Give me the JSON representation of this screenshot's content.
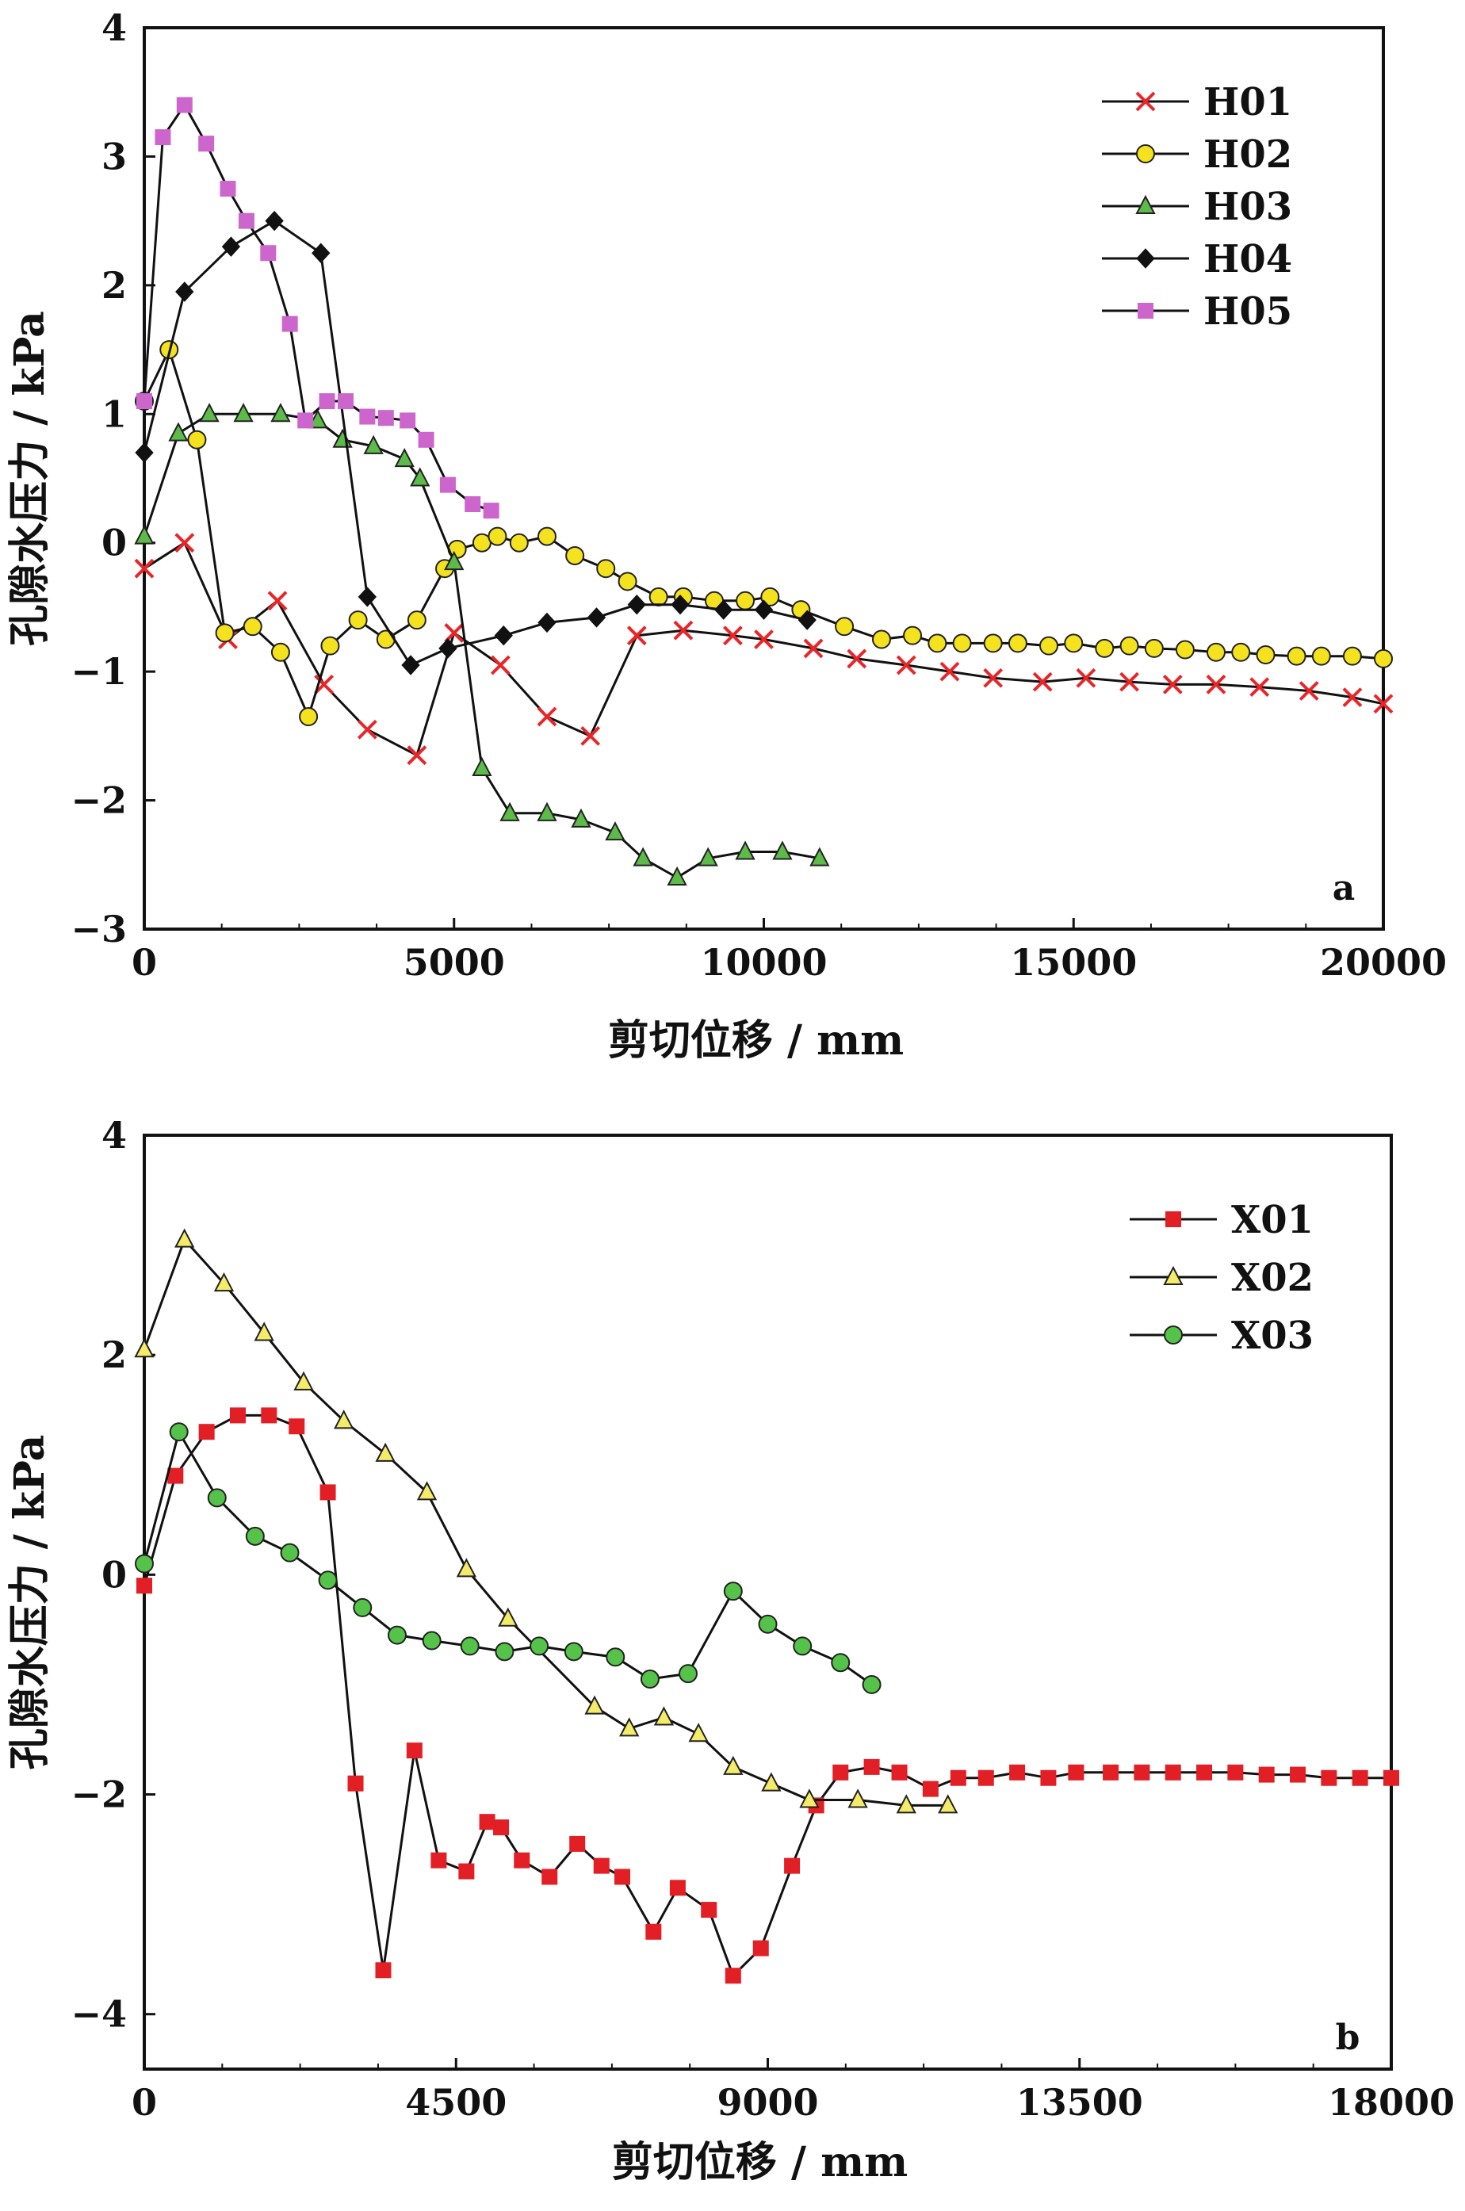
{
  "chart_data": [
    {
      "type": "line",
      "panel_label": "a",
      "xlabel": "剪切位移 / mm",
      "ylabel": "孔隙水压力 / kPa",
      "xlim": [
        0,
        20000
      ],
      "ylim": [
        -3,
        4
      ],
      "xticks": [
        0,
        5000,
        10000,
        15000,
        20000
      ],
      "yticks": [
        -3,
        -2,
        -1,
        0,
        1,
        2,
        3,
        4
      ],
      "ytick_labels": [
        "−3",
        "−2",
        "−1",
        "0",
        "1",
        "2",
        "3",
        "4"
      ],
      "legend_position": "top-right",
      "series": [
        {
          "name": "H01",
          "marker": "x",
          "color": "#e8262a",
          "fill": "#e8262a",
          "x": [
            0,
            650,
            1350,
            2150,
            2900,
            3600,
            4400,
            5000,
            5750,
            6500,
            7200,
            7950,
            8700,
            9500,
            10000,
            10800,
            11500,
            12300,
            13000,
            13700,
            14500,
            15200,
            15900,
            16600,
            17300,
            18000,
            18800,
            19500,
            20000
          ],
          "y": [
            -0.2,
            0.0,
            -0.75,
            -0.45,
            -1.1,
            -1.45,
            -1.65,
            -0.7,
            -0.95,
            -1.35,
            -1.5,
            -0.72,
            -0.68,
            -0.72,
            -0.75,
            -0.82,
            -0.9,
            -0.95,
            -1.0,
            -1.05,
            -1.08,
            -1.05,
            -1.08,
            -1.1,
            -1.1,
            -1.12,
            -1.15,
            -1.2,
            -1.25
          ]
        },
        {
          "name": "H02",
          "marker": "circle",
          "color": "#f4e21f",
          "fill": "#f4e21f",
          "x": [
            0,
            400,
            850,
            1300,
            1750,
            2200,
            2650,
            3000,
            3450,
            3900,
            4400,
            4850,
            5050,
            5450,
            5700,
            6050,
            6500,
            6950,
            7450,
            7800,
            8300,
            8700,
            9200,
            9700,
            10100,
            10600,
            11300,
            11900,
            12400,
            12800,
            13200,
            13700,
            14100,
            14600,
            15000,
            15500,
            15900,
            16300,
            16800,
            17300,
            17700,
            18100,
            18600,
            19000,
            19500,
            20000
          ],
          "y": [
            1.1,
            1.5,
            0.8,
            -0.7,
            -0.65,
            -0.85,
            -1.35,
            -0.8,
            -0.6,
            -0.75,
            -0.6,
            -0.2,
            -0.05,
            0.0,
            0.05,
            0.0,
            0.05,
            -0.1,
            -0.2,
            -0.3,
            -0.42,
            -0.42,
            -0.45,
            -0.45,
            -0.42,
            -0.52,
            -0.65,
            -0.75,
            -0.72,
            -0.78,
            -0.78,
            -0.78,
            -0.78,
            -0.8,
            -0.78,
            -0.82,
            -0.8,
            -0.82,
            -0.83,
            -0.85,
            -0.85,
            -0.87,
            -0.88,
            -0.88,
            -0.88,
            -0.9
          ]
        },
        {
          "name": "H03",
          "marker": "triangle",
          "color": "#2fa12f",
          "fill": "#5dbb4a",
          "x": [
            0,
            550,
            1050,
            1600,
            2200,
            2800,
            3200,
            3700,
            4200,
            4450,
            5000,
            5450,
            5900,
            6500,
            7050,
            7600,
            8050,
            8600,
            9100,
            9700,
            10300,
            10900
          ],
          "y": [
            0.05,
            0.85,
            1.0,
            1.0,
            1.0,
            0.95,
            0.8,
            0.75,
            0.65,
            0.5,
            -0.15,
            -1.75,
            -2.1,
            -2.1,
            -2.15,
            -2.25,
            -2.45,
            -2.6,
            -2.45,
            -2.4,
            -2.4,
            -2.45
          ]
        },
        {
          "name": "H04",
          "marker": "diamond",
          "color": "#111111",
          "fill": "#111111",
          "x": [
            0,
            650,
            1400,
            2100,
            2850,
            3600,
            4300,
            4900,
            5800,
            6500,
            7300,
            7950,
            8650,
            9350,
            10000,
            10700
          ],
          "y": [
            0.7,
            1.95,
            2.3,
            2.5,
            2.25,
            -0.42,
            -0.95,
            -0.82,
            -0.72,
            -0.62,
            -0.58,
            -0.48,
            -0.48,
            -0.52,
            -0.52,
            -0.6
          ]
        },
        {
          "name": "H05",
          "marker": "square",
          "color": "#c05fb5",
          "fill": "#cc66cc",
          "x": [
            0,
            300,
            650,
            1000,
            1350,
            1650,
            2000,
            2350,
            2600,
            2950,
            3250,
            3600,
            3900,
            4250,
            4550,
            4900,
            5300,
            5600
          ],
          "y": [
            1.1,
            3.15,
            3.4,
            3.1,
            2.75,
            2.5,
            2.25,
            1.7,
            0.95,
            1.1,
            1.1,
            0.98,
            0.97,
            0.95,
            0.8,
            0.45,
            0.3,
            0.25
          ]
        }
      ]
    },
    {
      "type": "line",
      "panel_label": "b",
      "xlabel": "剪切位移 / mm",
      "ylabel": "孔隙水压力 / kPa",
      "xlim": [
        0,
        18000
      ],
      "ylim": [
        -4.5,
        4
      ],
      "xticks": [
        0,
        4500,
        9000,
        13500,
        18000
      ],
      "yticks": [
        -4,
        -2,
        0,
        2,
        4
      ],
      "ytick_labels": [
        "−4",
        "−2",
        "0",
        "2",
        "4"
      ],
      "legend_position": "top-right",
      "series": [
        {
          "name": "X01",
          "marker": "square",
          "color": "#e31f26",
          "fill": "#e31f26",
          "x": [
            0,
            450,
            900,
            1350,
            1800,
            2200,
            2650,
            3050,
            3450,
            3900,
            4250,
            4650,
            4950,
            5150,
            5450,
            5850,
            6250,
            6600,
            6900,
            7350,
            7700,
            8150,
            8500,
            8900,
            9350,
            9700,
            10050,
            10500,
            10900,
            11350,
            11750,
            12150,
            12600,
            13050,
            13450,
            13950,
            14400,
            14850,
            15300,
            15750,
            16200,
            16650,
            17100,
            17550,
            18000
          ],
          "y": [
            -0.1,
            0.9,
            1.3,
            1.45,
            1.45,
            1.35,
            0.75,
            -1.9,
            -3.6,
            -1.6,
            -2.6,
            -2.7,
            -2.25,
            -2.3,
            -2.6,
            -2.75,
            -2.45,
            -2.65,
            -2.75,
            -3.25,
            -2.85,
            -3.05,
            -3.65,
            -3.4,
            -2.65,
            -2.1,
            -1.8,
            -1.75,
            -1.8,
            -1.95,
            -1.85,
            -1.85,
            -1.8,
            -1.85,
            -1.8,
            -1.8,
            -1.8,
            -1.8,
            -1.8,
            -1.8,
            -1.82,
            -1.82,
            -1.85,
            -1.85,
            -1.85
          ]
        },
        {
          "name": "X02",
          "marker": "triangle",
          "color": "#d8c21a",
          "fill": "#f5eb6a",
          "x": [
            0,
            580,
            1150,
            1730,
            2300,
            2880,
            3480,
            4080,
            4650,
            5250,
            6500,
            7000,
            7500,
            8000,
            8500,
            9050,
            9600,
            10300,
            11000,
            11600
          ],
          "y": [
            2.05,
            3.05,
            2.65,
            2.2,
            1.75,
            1.4,
            1.1,
            0.75,
            0.05,
            -0.4,
            -1.2,
            -1.4,
            -1.3,
            -1.45,
            -1.75,
            -1.9,
            -2.05,
            -2.05,
            -2.1,
            -2.1
          ]
        },
        {
          "name": "X03",
          "marker": "circle",
          "color": "#2f9a3a",
          "fill": "#55c24a",
          "x": [
            0,
            500,
            1050,
            1600,
            2100,
            2650,
            3150,
            3650,
            4150,
            4700,
            5200,
            5700,
            6200,
            6800,
            7300,
            7850,
            8500,
            9000,
            9500,
            10050,
            10500
          ],
          "y": [
            0.1,
            1.3,
            0.7,
            0.35,
            0.2,
            -0.05,
            -0.3,
            -0.55,
            -0.6,
            -0.65,
            -0.7,
            -0.65,
            -0.7,
            -0.75,
            -0.95,
            -0.9,
            -0.15,
            -0.45,
            -0.65,
            -0.8,
            -1.0
          ]
        }
      ]
    }
  ]
}
